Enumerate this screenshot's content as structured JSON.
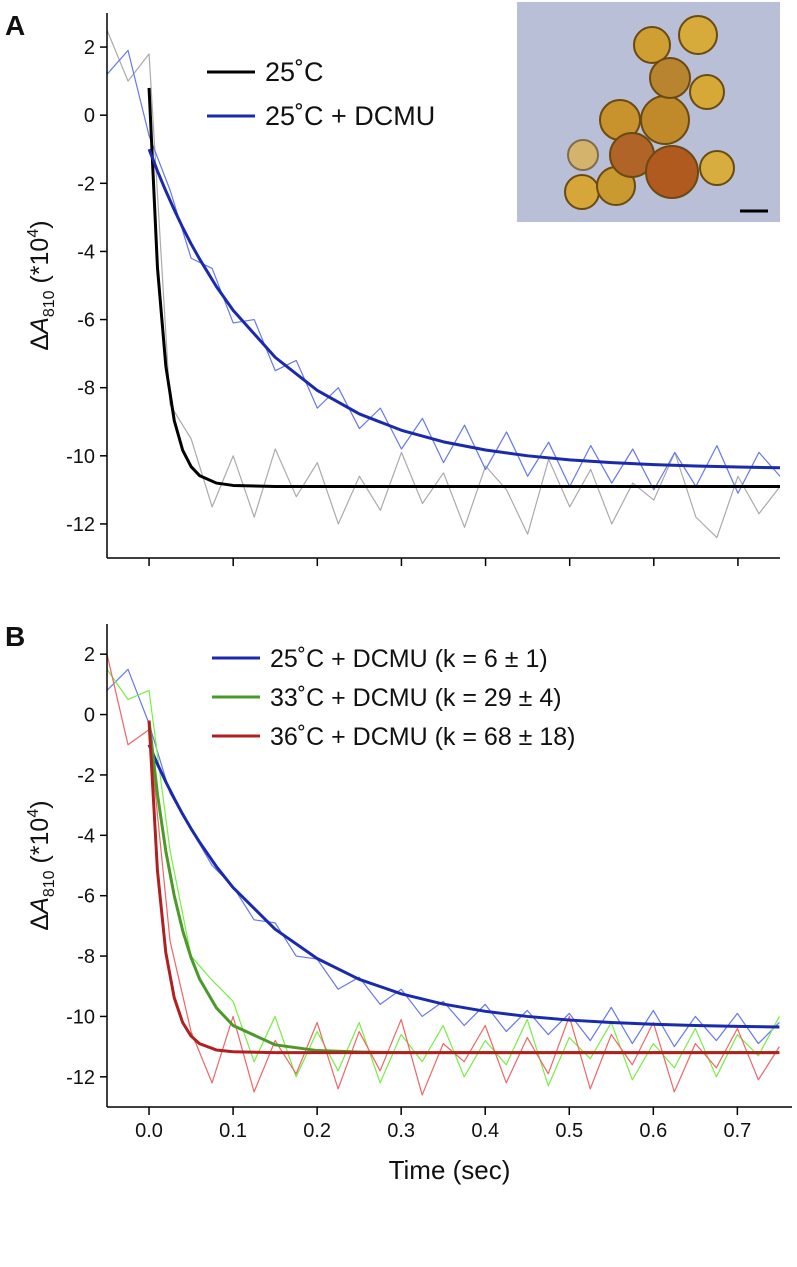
{
  "chart_data": [
    {
      "type": "line",
      "panel_label": "A",
      "y_label": {
        "prefix": "Δ",
        "var": "A",
        "sub": "810",
        "mid": " (*10",
        "sup": "4",
        "end": ")"
      },
      "xlim": [
        -0.05,
        0.75
      ],
      "ylim": [
        -13,
        3
      ],
      "xticks": [
        0,
        0.1,
        0.2,
        0.3,
        0.4,
        0.5,
        0.6,
        0.7
      ],
      "xtick_labels": false,
      "yticks": [
        2,
        0,
        -2,
        -4,
        -6,
        -8,
        -10,
        -12
      ],
      "series": [
        {
          "color": "#aaaaaa",
          "width": 1.2,
          "x": [
            -0.05,
            -0.025,
            0,
            0.025,
            0.05,
            0.075,
            0.1,
            0.125,
            0.15,
            0.175,
            0.2,
            0.225,
            0.25,
            0.275,
            0.3,
            0.325,
            0.35,
            0.375,
            0.4,
            0.425,
            0.45,
            0.475,
            0.5,
            0.525,
            0.55,
            0.575,
            0.6,
            0.625,
            0.65,
            0.675,
            0.7,
            0.725,
            0.75
          ],
          "values": [
            2.5,
            1.0,
            1.8,
            -8.5,
            -9.5,
            -11.5,
            -10.0,
            -11.8,
            -9.8,
            -11.2,
            -10.2,
            -12.0,
            -10.6,
            -11.6,
            -9.9,
            -11.4,
            -10.5,
            -12.1,
            -10.3,
            -11.0,
            -12.3,
            -10.1,
            -11.5,
            -10.4,
            -12.0,
            -10.8,
            -11.3,
            -9.9,
            -11.8,
            -12.4,
            -10.6,
            -11.7,
            -10.9
          ]
        },
        {
          "color": "#6677ee",
          "width": 1.2,
          "x": [
            -0.05,
            -0.025,
            0,
            0.025,
            0.05,
            0.075,
            0.1,
            0.125,
            0.15,
            0.175,
            0.2,
            0.225,
            0.25,
            0.275,
            0.3,
            0.325,
            0.35,
            0.375,
            0.4,
            0.425,
            0.45,
            0.475,
            0.5,
            0.525,
            0.55,
            0.575,
            0.6,
            0.625,
            0.65,
            0.675,
            0.7,
            0.725,
            0.75
          ],
          "values": [
            1.2,
            1.9,
            -0.6,
            -2.2,
            -4.2,
            -4.5,
            -6.1,
            -6.0,
            -7.5,
            -7.2,
            -8.6,
            -8.0,
            -9.2,
            -8.6,
            -9.8,
            -8.9,
            -10.2,
            -9.1,
            -10.4,
            -9.3,
            -10.6,
            -9.6,
            -10.9,
            -9.7,
            -10.8,
            -9.8,
            -11.0,
            -9.9,
            -10.9,
            -9.7,
            -11.1,
            -9.9,
            -10.6
          ]
        },
        {
          "name": "25˚C",
          "color": "#000000",
          "width": 3,
          "x": [
            0,
            0.01,
            0.02,
            0.03,
            0.04,
            0.05,
            0.06,
            0.08,
            0.1,
            0.15,
            0.2,
            0.25,
            0.3,
            0.35,
            0.4,
            0.45,
            0.5,
            0.55,
            0.6,
            0.65,
            0.7,
            0.75
          ],
          "values": [
            0.8,
            -4.48,
            -7.38,
            -8.97,
            -9.84,
            -10.32,
            -10.58,
            -10.8,
            -10.87,
            -10.9,
            -10.9,
            -10.9,
            -10.9,
            -10.9,
            -10.9,
            -10.9,
            -10.9,
            -10.9,
            -10.9,
            -10.9,
            -10.9,
            -10.9
          ]
        },
        {
          "name": "25˚C + DCMU",
          "color": "#1a2aaa",
          "width": 3,
          "x": [
            0,
            0.01,
            0.02,
            0.03,
            0.04,
            0.05,
            0.06,
            0.08,
            0.1,
            0.15,
            0.2,
            0.25,
            0.3,
            0.35,
            0.4,
            0.45,
            0.5,
            0.55,
            0.6,
            0.65,
            0.7,
            0.75
          ],
          "values": [
            -1.0,
            -1.64,
            -2.23,
            -2.78,
            -3.3,
            -3.78,
            -4.22,
            -5.03,
            -5.73,
            -7.11,
            -8.08,
            -8.77,
            -9.25,
            -9.59,
            -9.83,
            -10.0,
            -10.12,
            -10.2,
            -10.26,
            -10.3,
            -10.33,
            -10.35
          ]
        }
      ]
    },
    {
      "type": "line",
      "panel_label": "B",
      "x_label": "Time (sec)",
      "y_label": {
        "prefix": "Δ",
        "var": "A",
        "sub": "810",
        "mid": " (*10",
        "sup": "4",
        "end": ")"
      },
      "xlim": [
        -0.05,
        0.765
      ],
      "ylim": [
        -13,
        3
      ],
      "xticks": [
        {
          "value": 0,
          "label": "0.0"
        },
        0.1,
        0.2,
        0.3,
        0.4,
        0.5,
        0.6,
        0.7
      ],
      "xtick_labels": true,
      "yticks": [
        2,
        0,
        -2,
        -4,
        -6,
        -8,
        -10,
        -12
      ],
      "series": [
        {
          "color": "#6677ee",
          "width": 1.2,
          "x": [
            -0.05,
            -0.025,
            0,
            0.025,
            0.05,
            0.075,
            0.1,
            0.125,
            0.15,
            0.175,
            0.2,
            0.225,
            0.25,
            0.275,
            0.3,
            0.325,
            0.35,
            0.375,
            0.4,
            0.425,
            0.45,
            0.475,
            0.5,
            0.525,
            0.55,
            0.575,
            0.6,
            0.625,
            0.65,
            0.675,
            0.7,
            0.725,
            0.75
          ],
          "values": [
            0.8,
            1.5,
            -0.3,
            -2.6,
            -3.8,
            -5.0,
            -5.7,
            -6.8,
            -6.9,
            -8.0,
            -8.1,
            -9.1,
            -8.7,
            -9.6,
            -9.1,
            -10.0,
            -9.5,
            -10.3,
            -9.6,
            -10.5,
            -9.8,
            -10.6,
            -9.9,
            -10.8,
            -9.7,
            -10.9,
            -9.8,
            -11.0,
            -10.0,
            -10.8,
            -9.9,
            -10.9,
            -10.2
          ]
        },
        {
          "color": "#77ee44",
          "width": 1.2,
          "x": [
            -0.05,
            -0.025,
            0,
            0.025,
            0.05,
            0.075,
            0.1,
            0.125,
            0.15,
            0.175,
            0.2,
            0.225,
            0.25,
            0.275,
            0.3,
            0.325,
            0.35,
            0.375,
            0.4,
            0.425,
            0.45,
            0.475,
            0.5,
            0.525,
            0.55,
            0.575,
            0.6,
            0.625,
            0.65,
            0.675,
            0.7,
            0.725,
            0.75
          ],
          "values": [
            1.5,
            0.5,
            0.8,
            -4.5,
            -8.0,
            -8.8,
            -9.5,
            -11.5,
            -10.0,
            -12.0,
            -10.5,
            -11.8,
            -10.2,
            -12.2,
            -10.6,
            -11.5,
            -10.3,
            -12.0,
            -10.8,
            -11.6,
            -10.1,
            -12.3,
            -10.7,
            -11.4,
            -10.2,
            -12.1,
            -10.9,
            -11.7,
            -10.4,
            -12.0,
            -10.6,
            -11.3,
            -10.0
          ]
        },
        {
          "color": "#ee6666",
          "width": 1.2,
          "x": [
            -0.05,
            -0.025,
            0,
            0.025,
            0.05,
            0.075,
            0.1,
            0.125,
            0.15,
            0.175,
            0.2,
            0.225,
            0.25,
            0.275,
            0.3,
            0.325,
            0.35,
            0.375,
            0.4,
            0.425,
            0.45,
            0.475,
            0.5,
            0.525,
            0.55,
            0.575,
            0.6,
            0.625,
            0.65,
            0.675,
            0.7,
            0.725,
            0.75
          ],
          "values": [
            2.0,
            -1.0,
            -0.5,
            -7.5,
            -10.5,
            -12.2,
            -10.0,
            -12.5,
            -10.8,
            -11.9,
            -10.2,
            -12.4,
            -10.5,
            -11.8,
            -10.1,
            -12.6,
            -10.9,
            -11.5,
            -10.3,
            -12.2,
            -10.7,
            -11.9,
            -10.0,
            -12.4,
            -10.6,
            -11.6,
            -10.2,
            -12.5,
            -10.9,
            -11.7,
            -10.4,
            -12.1,
            -11.0
          ]
        },
        {
          "name": "25˚C + DCMU (k = 6 ± 1)",
          "color": "#1a2aaa",
          "width": 3,
          "x": [
            0,
            0.01,
            0.02,
            0.03,
            0.04,
            0.05,
            0.06,
            0.08,
            0.1,
            0.15,
            0.2,
            0.25,
            0.3,
            0.35,
            0.4,
            0.45,
            0.5,
            0.55,
            0.6,
            0.65,
            0.7,
            0.75
          ],
          "values": [
            -1.0,
            -1.64,
            -2.23,
            -2.78,
            -3.3,
            -3.78,
            -4.22,
            -5.03,
            -5.73,
            -7.11,
            -8.08,
            -8.77,
            -9.25,
            -9.59,
            -9.83,
            -10.0,
            -10.12,
            -10.2,
            -10.26,
            -10.3,
            -10.33,
            -10.35
          ]
        },
        {
          "name": "33˚C + DCMU (k = 29 ± 4)",
          "color": "#4a9a2a",
          "width": 3,
          "x": [
            0,
            0.01,
            0.02,
            0.03,
            0.04,
            0.05,
            0.06,
            0.08,
            0.1,
            0.15,
            0.2,
            0.25,
            0.3,
            0.35,
            0.4,
            0.45,
            0.5,
            0.55,
            0.6,
            0.65,
            0.7,
            0.75
          ],
          "values": [
            -0.2,
            -2.63,
            -4.53,
            -6.0,
            -7.15,
            -8.05,
            -8.75,
            -9.71,
            -10.3,
            -10.94,
            -11.13,
            -11.18,
            -11.2,
            -11.2,
            -11.2,
            -11.2,
            -11.2,
            -11.2,
            -11.2,
            -11.2,
            -11.2,
            -11.2
          ]
        },
        {
          "name": "36˚C + DCMU (k = 68 ± 18)",
          "color": "#b02020",
          "width": 3,
          "x": [
            0,
            0.01,
            0.02,
            0.03,
            0.04,
            0.05,
            0.06,
            0.08,
            0.1,
            0.15,
            0.2,
            0.25,
            0.3,
            0.35,
            0.4,
            0.45,
            0.5,
            0.55,
            0.6,
            0.65,
            0.7,
            0.75
          ],
          "values": [
            -0.2,
            -5.16,
            -7.89,
            -9.38,
            -10.2,
            -10.65,
            -10.9,
            -11.11,
            -11.17,
            -11.2,
            -11.2,
            -11.2,
            -11.2,
            -11.2,
            -11.2,
            -11.2,
            -11.2,
            -11.2,
            -11.2,
            -11.2,
            -11.2,
            -11.2
          ]
        }
      ]
    }
  ]
}
